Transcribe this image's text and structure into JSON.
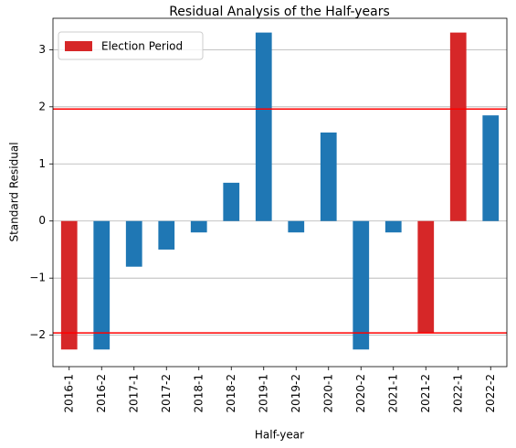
{
  "chart_data": {
    "type": "bar",
    "title": "Residual Analysis of the Half-years",
    "xlabel": "Half-year",
    "ylabel": "Standard Residual",
    "categories": [
      "2016-1",
      "2016-2",
      "2017-1",
      "2017-2",
      "2018-1",
      "2018-2",
      "2019-1",
      "2019-2",
      "2020-1",
      "2020-2",
      "2021-1",
      "2021-2",
      "2022-1",
      "2022-2"
    ],
    "values": [
      -2.25,
      -2.25,
      -0.8,
      -0.5,
      -0.2,
      0.67,
      3.3,
      -0.2,
      1.55,
      -2.25,
      -0.2,
      -1.95,
      3.3,
      1.85
    ],
    "election_period": [
      true,
      false,
      false,
      false,
      false,
      false,
      false,
      false,
      false,
      false,
      false,
      true,
      true,
      false
    ],
    "ylim": [
      -2.55,
      3.55
    ],
    "yticks": [
      -2,
      -1,
      0,
      1,
      2,
      3
    ],
    "ytick_labels": [
      "−2",
      "−1",
      "0",
      "1",
      "2",
      "3"
    ],
    "threshold_lines": [
      1.96,
      -1.96
    ],
    "grid": "horizontal",
    "legend": {
      "placement": "top-left",
      "entries": [
        {
          "label": "Election Period",
          "color": "#d62728"
        }
      ]
    },
    "colors": {
      "bar": "#1f77b4",
      "election": "#d62728",
      "threshold": "#ff0000",
      "grid": "#b0b0b0"
    }
  }
}
